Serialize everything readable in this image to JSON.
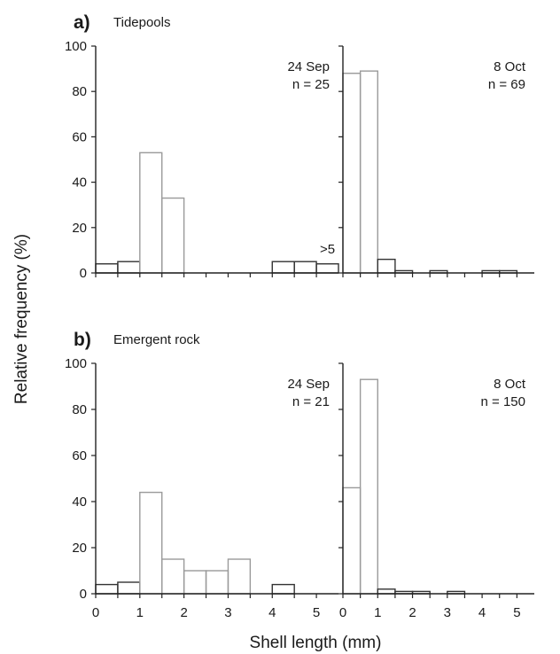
{
  "figure": {
    "ylabel": "Relative frequency (%)",
    "xlabel": "Shell length (mm)"
  },
  "chart_data": [
    {
      "type": "bar",
      "panel_letter": "a)",
      "panel_title": "Tidepools",
      "date": "24 Sep",
      "n": "n = 25",
      "bin_width": 0.5,
      "bins": [
        0,
        0.5,
        1.0,
        1.5,
        2.0,
        2.5,
        3.0,
        3.5,
        4.0,
        4.5,
        5.0
      ],
      "values": [
        4,
        5,
        53,
        33,
        0,
        0,
        0,
        0,
        5,
        5,
        4
      ],
      "annotation": ">5",
      "xlim": [
        0,
        5.5
      ],
      "ylim": [
        0,
        100
      ],
      "yticks": [
        0,
        20,
        40,
        60,
        80,
        100
      ],
      "xticks": [
        0,
        1,
        2,
        3,
        4,
        5
      ],
      "show_tick_labels_x": false
    },
    {
      "type": "bar",
      "date": "8 Oct",
      "n": "n = 69",
      "bin_width": 0.5,
      "bins": [
        0,
        0.5,
        1.0,
        1.5,
        2.0,
        2.5,
        3.0,
        3.5,
        4.0,
        4.5
      ],
      "values": [
        88,
        89,
        6,
        1,
        0,
        1,
        0,
        0,
        1,
        1
      ],
      "xlim": [
        0,
        5.5
      ],
      "ylim": [
        0,
        100
      ],
      "yticks": [
        0,
        20,
        40,
        60,
        80,
        100
      ],
      "xticks": [
        0,
        1,
        2,
        3,
        4,
        5
      ],
      "show_tick_labels_x": false
    },
    {
      "type": "bar",
      "panel_letter": "b)",
      "panel_title": "Emergent rock",
      "date": "24 Sep",
      "n": "n = 21",
      "bin_width": 0.5,
      "bins": [
        0,
        0.5,
        1.0,
        1.5,
        2.0,
        2.5,
        3.0,
        3.5,
        4.0
      ],
      "values": [
        4,
        5,
        44,
        15,
        10,
        10,
        15,
        0,
        4
      ],
      "xlim": [
        0,
        5.5
      ],
      "ylim": [
        0,
        100
      ],
      "yticks": [
        0,
        20,
        40,
        60,
        80,
        100
      ],
      "xticks": [
        0,
        1,
        2,
        3,
        4,
        5
      ],
      "show_tick_labels_x": true
    },
    {
      "type": "bar",
      "date": "8 Oct",
      "n": "n = 150",
      "bin_width": 0.5,
      "bins": [
        0,
        0.5,
        1.0,
        1.5,
        2.0,
        2.5,
        3.0,
        3.5,
        4.0,
        4.5
      ],
      "values": [
        46,
        93,
        2,
        1,
        1,
        0,
        1,
        0,
        0,
        0
      ],
      "xlim": [
        0,
        5.5
      ],
      "ylim": [
        0,
        100
      ],
      "yticks": [
        0,
        20,
        40,
        60,
        80,
        100
      ],
      "xticks": [
        0,
        1,
        2,
        3,
        4,
        5
      ],
      "show_tick_labels_x": true
    }
  ]
}
